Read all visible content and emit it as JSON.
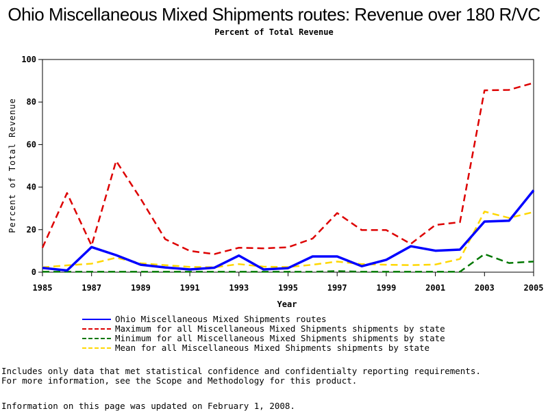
{
  "chart_data": {
    "type": "line",
    "title": "Ohio Miscellaneous Mixed Shipments routes: Revenue over 180 R/VC",
    "subtitle": "Percent of Total Revenue",
    "xlabel": "Year",
    "ylabel": "Percent of Total Revenue",
    "x": [
      1985,
      1986,
      1987,
      1988,
      1989,
      1990,
      1991,
      1992,
      1993,
      1994,
      1995,
      1996,
      1997,
      1998,
      1999,
      2000,
      2001,
      2002,
      2003,
      2004,
      2005
    ],
    "xlim": [
      1985,
      2005
    ],
    "ylim": [
      0,
      100
    ],
    "xticks": [
      "1985",
      "1987",
      "1989",
      "1991",
      "1993",
      "1995",
      "1997",
      "1999",
      "2001",
      "2003",
      "2005"
    ],
    "yticks": [
      "0",
      "20",
      "40",
      "60",
      "80",
      "100"
    ],
    "grid": false,
    "legend_position": "bottom",
    "series": [
      {
        "name": "Ohio Miscellaneous Mixed Shipments routes",
        "color": "#0000ff",
        "style": "solid",
        "values": [
          2,
          0.8,
          11.8,
          8,
          3.5,
          2.2,
          1.3,
          2.1,
          7.8,
          1.3,
          1.9,
          7.4,
          7.4,
          2.8,
          5.8,
          12.2,
          10.1,
          10.6,
          23.8,
          24.2,
          38.5
        ]
      },
      {
        "name": "Maximum for all Miscellaneous Mixed Shipments shipments by state",
        "color": "#dd0000",
        "style": "dashed",
        "values": [
          11.5,
          37.2,
          12.5,
          52.3,
          34.5,
          15.5,
          10,
          8.5,
          11.5,
          11.2,
          11.7,
          15.8,
          27.8,
          19.8,
          19.8,
          13.3,
          22.2,
          23.5,
          85.5,
          85.7,
          89
        ]
      },
      {
        "name": "Minimum for all Miscellaneous Mixed Shipments shipments by state",
        "color": "#007700",
        "style": "dashed",
        "values": [
          0.2,
          0.2,
          0.2,
          0.2,
          0.2,
          0.2,
          0.2,
          0.2,
          0.2,
          0.2,
          0.2,
          0.2,
          0.5,
          0.2,
          0.2,
          0.2,
          0.2,
          0.2,
          8.5,
          4.3,
          5
        ]
      },
      {
        "name": "Mean for all Miscellaneous Mixed Shipments shipments by state",
        "color": "#ffd700",
        "style": "dashed",
        "values": [
          2.3,
          3.2,
          4,
          6.8,
          4.2,
          3.3,
          2.5,
          2.3,
          3.8,
          2.6,
          2.4,
          3.5,
          5,
          3.8,
          3.5,
          3.3,
          3.6,
          6.2,
          28.5,
          25.5,
          28.3
        ]
      }
    ]
  },
  "notes": [
    "Includes only data that met statistical confidence and confidentialty reporting requirements.",
    "For more information, see the Scope and Methodology for this product."
  ],
  "updated": "Information on this page was updated on February 1, 2008."
}
